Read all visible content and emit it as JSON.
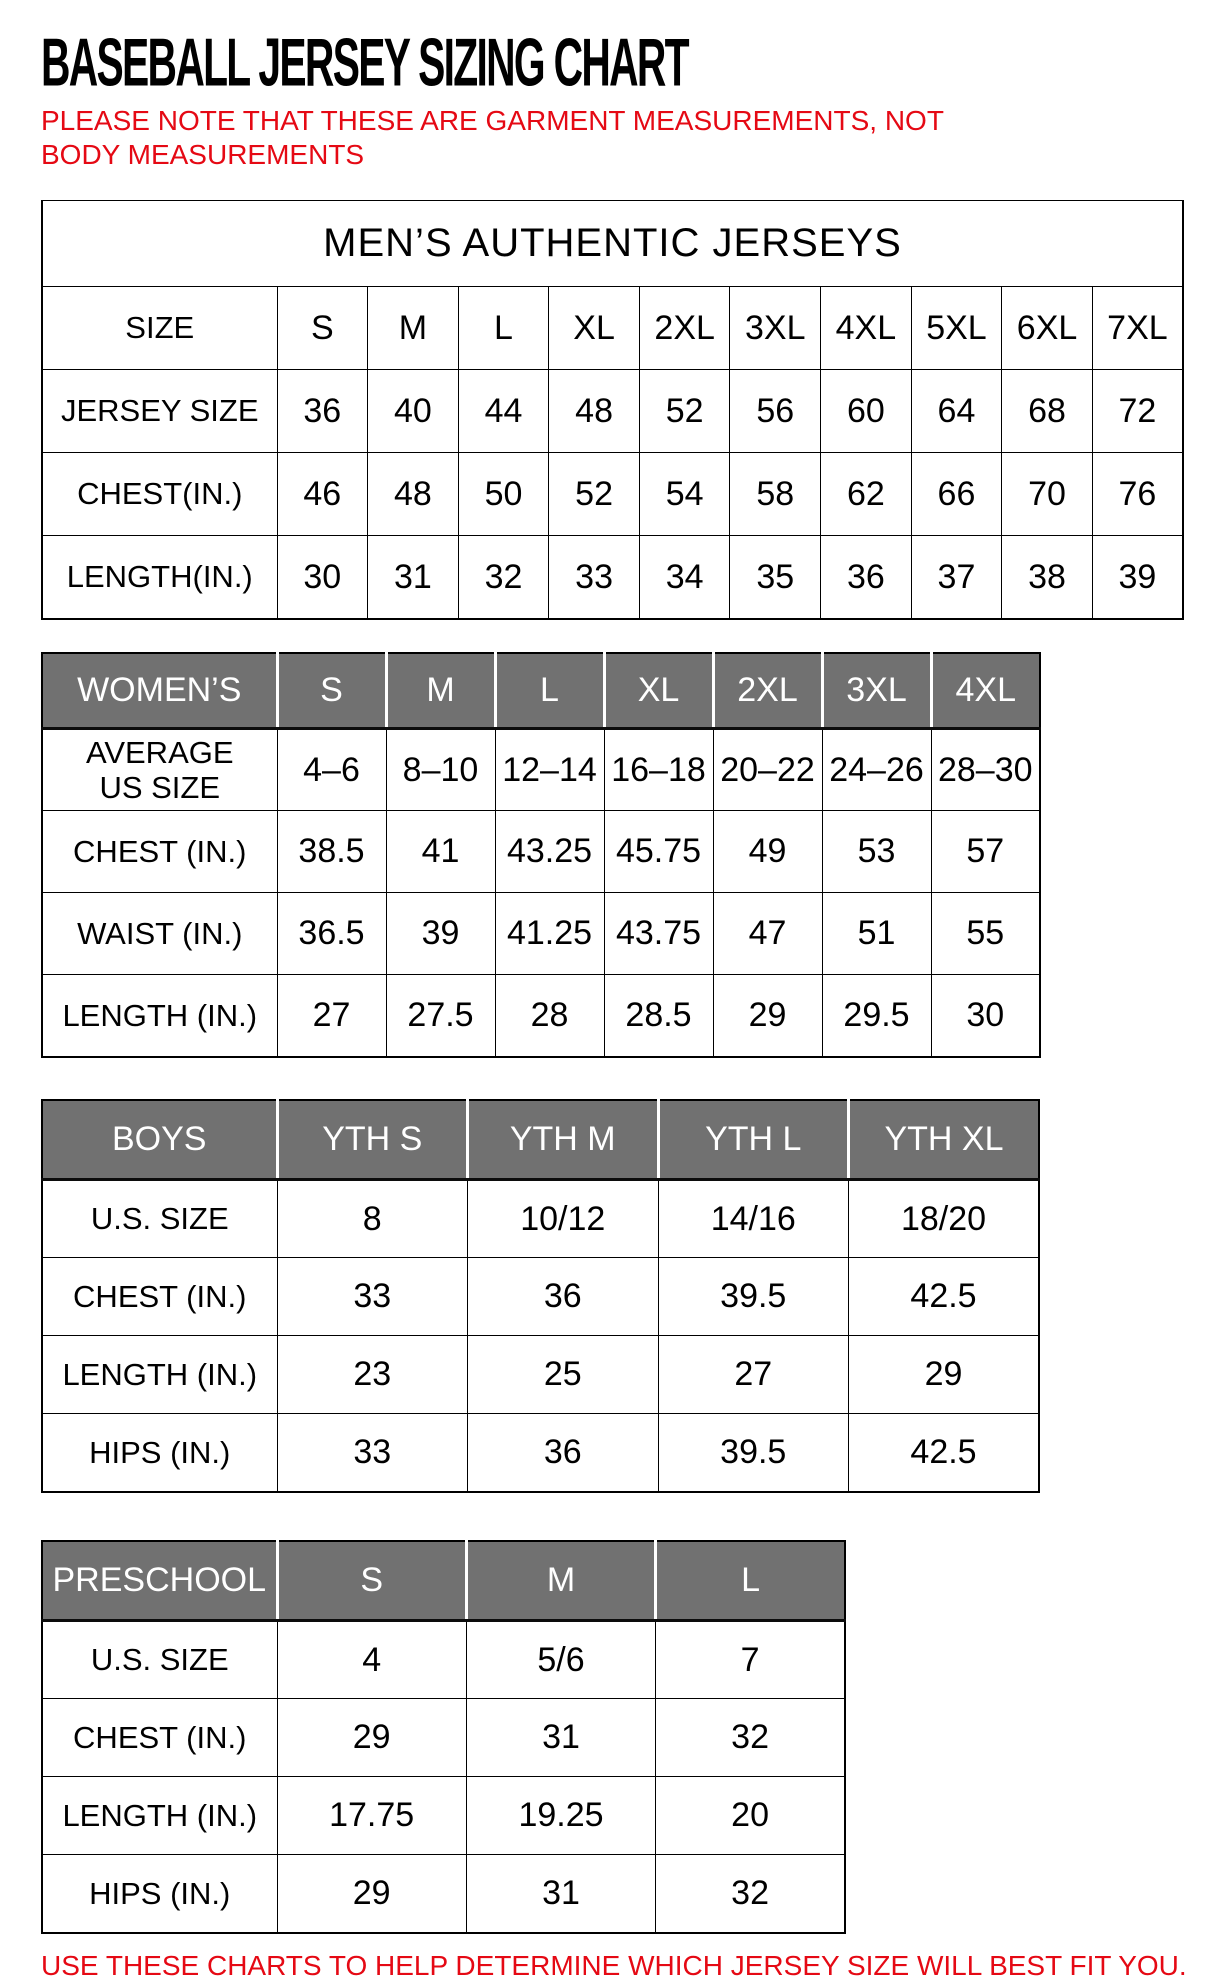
{
  "colors": {
    "accent_red": "#e50914",
    "header_gray": "#717171"
  },
  "page": {
    "title": "BASEBALL JERSEY SIZING CHART",
    "note": "PLEASE NOTE THAT THESE ARE GARMENT MEASUREMENTS, NOT BODY MEASUREMENTS",
    "footer": "USE THESE CHARTS TO HELP DETERMINE WHICH JERSEY SIZE WILL BEST FIT YOU."
  },
  "tables": {
    "mens": {
      "banner": "MEN’S AUTHENTIC JERSEYS",
      "rows": [
        {
          "label": "SIZE",
          "values": [
            "S",
            "M",
            "L",
            "XL",
            "2XL",
            "3XL",
            "4XL",
            "5XL",
            "6XL",
            "7XL"
          ]
        },
        {
          "label": "JERSEY SIZE",
          "values": [
            "36",
            "40",
            "44",
            "48",
            "52",
            "56",
            "60",
            "64",
            "68",
            "72"
          ]
        },
        {
          "label": "CHEST(IN.)",
          "values": [
            "46",
            "48",
            "50",
            "52",
            "54",
            "58",
            "62",
            "66",
            "70",
            "76"
          ]
        },
        {
          "label": "LENGTH(IN.)",
          "values": [
            "30",
            "31",
            "32",
            "33",
            "34",
            "35",
            "36",
            "37",
            "38",
            "39"
          ]
        }
      ]
    },
    "womens": {
      "header": {
        "label": "WOMEN’S",
        "values": [
          "S",
          "M",
          "L",
          "XL",
          "2XL",
          "3XL",
          "4XL"
        ]
      },
      "rows": [
        {
          "label": "AVERAGE\nUS SIZE",
          "values": [
            "4–6",
            "8–10",
            "12–14",
            "16–18",
            "20–22",
            "24–26",
            "28–30"
          ]
        },
        {
          "label": "CHEST (IN.)",
          "values": [
            "38.5",
            "41",
            "43.25",
            "45.75",
            "49",
            "53",
            "57"
          ]
        },
        {
          "label": "WAIST (IN.)",
          "values": [
            "36.5",
            "39",
            "41.25",
            "43.75",
            "47",
            "51",
            "55"
          ]
        },
        {
          "label": "LENGTH (IN.)",
          "values": [
            "27",
            "27.5",
            "28",
            "28.5",
            "29",
            "29.5",
            "30"
          ]
        }
      ]
    },
    "boys": {
      "header": {
        "label": "BOYS",
        "values": [
          "YTH S",
          "YTH M",
          "YTH L",
          "YTH XL"
        ]
      },
      "rows": [
        {
          "label": "U.S. SIZE",
          "values": [
            "8",
            "10/12",
            "14/16",
            "18/20"
          ]
        },
        {
          "label": "CHEST (IN.)",
          "values": [
            "33",
            "36",
            "39.5",
            "42.5"
          ]
        },
        {
          "label": "LENGTH (IN.)",
          "values": [
            "23",
            "25",
            "27",
            "29"
          ]
        },
        {
          "label": "HIPS (IN.)",
          "values": [
            "33",
            "36",
            "39.5",
            "42.5"
          ]
        }
      ]
    },
    "preschool": {
      "header": {
        "label": "PRESCHOOL",
        "values": [
          "S",
          "M",
          "L"
        ]
      },
      "rows": [
        {
          "label": "U.S. SIZE",
          "values": [
            "4",
            "5/6",
            "7"
          ]
        },
        {
          "label": "CHEST (IN.)",
          "values": [
            "29",
            "31",
            "32"
          ]
        },
        {
          "label": "LENGTH (IN.)",
          "values": [
            "17.75",
            "19.25",
            "20"
          ]
        },
        {
          "label": "HIPS (IN.)",
          "values": [
            "29",
            "31",
            "32"
          ]
        }
      ]
    }
  }
}
